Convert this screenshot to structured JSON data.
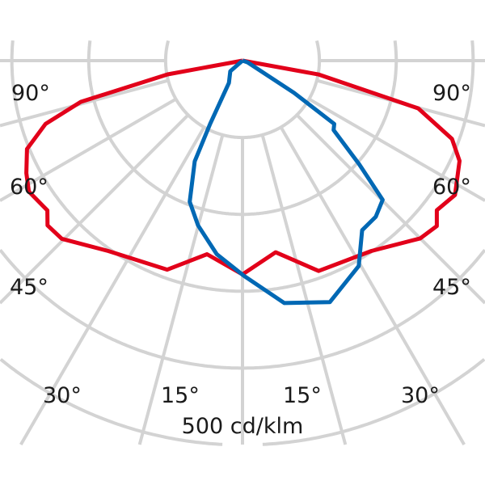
{
  "chart_data": {
    "type": "polar",
    "title": "",
    "unit_label": "500 cd/klm",
    "radial_rings": [
      100,
      200,
      300,
      400,
      500,
      600
    ],
    "angle_step_deg": 15,
    "grid": true,
    "angle_labels": {
      "left": [
        "90°",
        "60°",
        "45°"
      ],
      "right": [
        "90°",
        "60°",
        "45°"
      ],
      "bottom": [
        "30°",
        "15°",
        "15°",
        "30°"
      ]
    },
    "series": [
      {
        "color": "#e2001a",
        "points": [
          [
            -90,
            0
          ],
          [
            -79.6,
            99
          ],
          [
            -75.7,
            217
          ],
          [
            -72.2,
            269
          ],
          [
            -67.7,
            303
          ],
          [
            -62.5,
            317
          ],
          [
            -58.5,
            326
          ],
          [
            -52.5,
            320
          ],
          [
            -49.8,
            332
          ],
          [
            -45.4,
            330
          ],
          [
            -35.2,
            303
          ],
          [
            -19.8,
            289
          ],
          [
            -10.4,
            256
          ],
          [
            0,
            278
          ],
          [
            9.8,
            253
          ],
          [
            19.9,
            291
          ],
          [
            34.1,
            299
          ],
          [
            45,
            327
          ],
          [
            49.6,
            332
          ],
          [
            52.4,
            319
          ],
          [
            57.7,
            327
          ],
          [
            65.2,
            311
          ],
          [
            69.5,
            291
          ],
          [
            74.8,
            237
          ],
          [
            79.7,
            101
          ],
          [
            90,
            0
          ]
        ]
      },
      {
        "color": "#0068b4",
        "points": [
          [
            0,
            0
          ],
          [
            -49,
            21
          ],
          [
            -31.3,
            34
          ],
          [
            -27.1,
            92
          ],
          [
            -25.4,
            145
          ],
          [
            -20.5,
            196
          ],
          [
            -15.1,
            222
          ],
          [
            -7.6,
            254
          ],
          [
            0.4,
            280
          ],
          [
            9.8,
            320
          ],
          [
            19.9,
            334
          ],
          [
            29.5,
            307
          ],
          [
            35.2,
            270
          ],
          [
            40.5,
            267
          ],
          [
            45.2,
            257
          ],
          [
            48.4,
            203
          ],
          [
            52.7,
            149
          ],
          [
            55.4,
            145
          ],
          [
            58,
            79
          ],
          [
            71.6,
            7
          ],
          [
            0,
            0
          ]
        ]
      }
    ],
    "grid_color": "#d3d3d3"
  }
}
